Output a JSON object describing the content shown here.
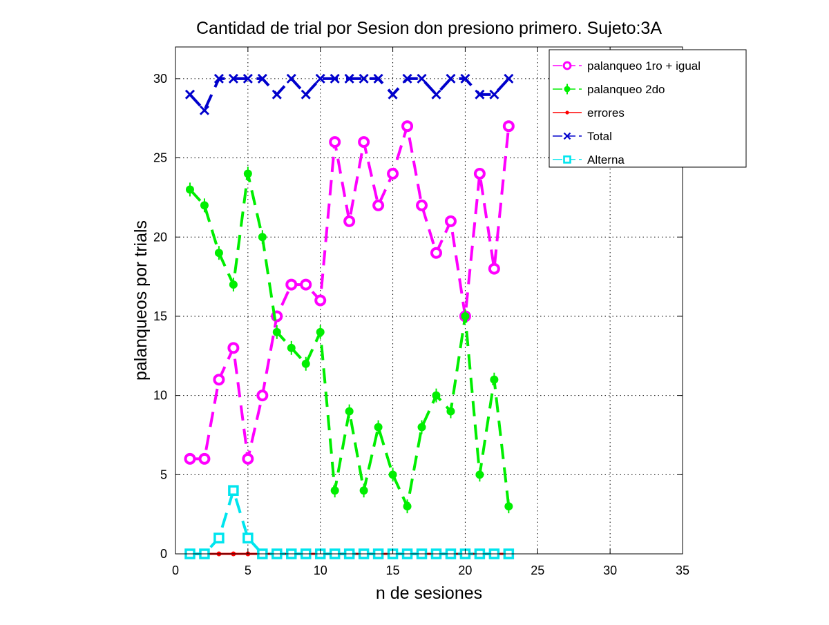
{
  "chart_data": {
    "type": "line",
    "title": "Cantidad de trial por Sesion don presiono primero. Sujeto:3A",
    "xlabel": "n de sesiones",
    "ylabel": "palanqueos por trials",
    "xlim": [
      0,
      35
    ],
    "ylim": [
      0,
      32
    ],
    "xticks": [
      0,
      5,
      10,
      15,
      20,
      25,
      30,
      35
    ],
    "yticks": [
      0,
      5,
      10,
      15,
      20,
      25,
      30
    ],
    "grid": true,
    "legend_position": "top-right",
    "x": [
      1,
      2,
      3,
      4,
      5,
      6,
      7,
      8,
      9,
      10,
      11,
      12,
      13,
      14,
      15,
      16,
      17,
      18,
      19,
      20,
      21,
      22,
      23
    ],
    "series": [
      {
        "name": "palanqueo 1ro + igual",
        "color": "#ff00ff",
        "marker": "circle",
        "line": "dashed",
        "values": [
          6,
          6,
          11,
          13,
          6,
          10,
          15,
          17,
          17,
          16,
          26,
          21,
          26,
          22,
          24,
          27,
          22,
          19,
          21,
          15,
          24,
          18,
          27
        ]
      },
      {
        "name": "palanqueo 2do",
        "color": "#00ee00",
        "marker": "asterisk",
        "line": "dashed",
        "values": [
          23,
          22,
          19,
          17,
          24,
          20,
          14,
          13,
          12,
          14,
          4,
          9,
          4,
          8,
          5,
          3,
          8,
          10,
          9,
          15,
          5,
          11,
          3
        ]
      },
      {
        "name": "errores",
        "color": "#ff0000",
        "marker": "dot",
        "line": "solid",
        "values": [
          0,
          0,
          0,
          0,
          0,
          0,
          0,
          0,
          0,
          0,
          0,
          0,
          0,
          0,
          0,
          0,
          0,
          0,
          0,
          0,
          0,
          0,
          0
        ]
      },
      {
        "name": "Total",
        "color": "#0000cc",
        "marker": "x",
        "line": "dashed",
        "values": [
          29,
          28,
          30,
          30,
          30,
          30,
          29,
          30,
          29,
          30,
          30,
          30,
          30,
          30,
          29,
          30,
          30,
          29,
          30,
          30,
          29,
          29,
          30
        ]
      },
      {
        "name": "Alterna",
        "color": "#00e5ee",
        "marker": "square",
        "line": "dashed",
        "values": [
          0,
          0,
          1,
          4,
          1,
          0,
          0,
          0,
          0,
          0,
          0,
          0,
          0,
          0,
          0,
          0,
          0,
          0,
          0,
          0,
          0,
          0,
          0
        ]
      }
    ]
  }
}
